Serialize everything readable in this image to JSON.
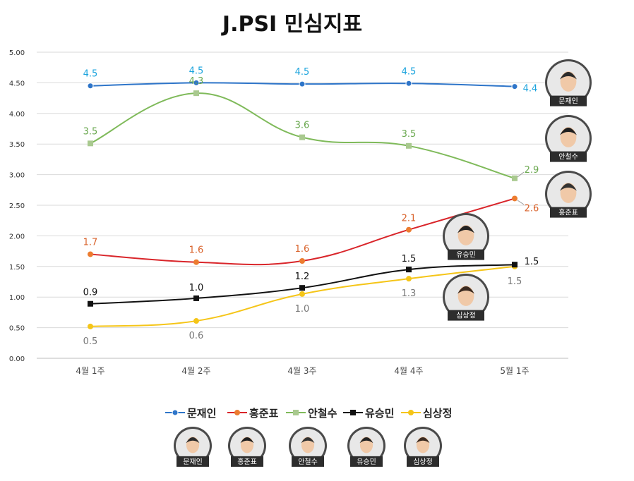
{
  "chart_data": {
    "type": "line",
    "title": "J.PSI 민심지표",
    "categories": [
      "4월 1주",
      "4월 2주",
      "4월 3주",
      "4월 4주",
      "5월 1주"
    ],
    "ylim": [
      0,
      5
    ],
    "yticks": [
      "0.00",
      "0.50",
      "1.00",
      "1.50",
      "2.00",
      "2.50",
      "3.00",
      "3.50",
      "4.00",
      "4.50",
      "5.00"
    ],
    "grid": true,
    "legend_position": "bottom",
    "series": [
      {
        "name": "문재인",
        "color": "#2e75c9",
        "label_color": "#1aa3dd",
        "marker": "circle",
        "values": [
          4.45,
          4.5,
          4.48,
          4.49,
          4.44
        ],
        "labels": [
          "4.5",
          "4.5",
          "4.5",
          "4.5",
          "4.4"
        ]
      },
      {
        "name": "홍준표",
        "color": "#d9252a",
        "label_color": "#d9622b",
        "marker": "circle-orange",
        "values": [
          1.7,
          1.57,
          1.59,
          2.1,
          2.61
        ],
        "labels": [
          "1.7",
          "1.6",
          "1.6",
          "2.1",
          "2.6"
        ]
      },
      {
        "name": "안철수",
        "color": "#7fba5a",
        "label_color": "#6aa84f",
        "marker": "square",
        "values": [
          3.51,
          4.33,
          3.61,
          3.47,
          2.94
        ],
        "labels": [
          "3.5",
          "4.3",
          "3.6",
          "3.5",
          "2.9"
        ]
      },
      {
        "name": "유승민",
        "color": "#111111",
        "label_color": "#111111",
        "marker": "square-black",
        "values": [
          0.89,
          0.98,
          1.15,
          1.45,
          1.53
        ],
        "labels": [
          "0.9",
          "1.0",
          "1.2",
          "1.5",
          "1.5"
        ]
      },
      {
        "name": "심상정",
        "color": "#f5c518",
        "label_color": "#777777",
        "marker": "circle-yellow",
        "values": [
          0.52,
          0.61,
          1.05,
          1.3,
          1.5
        ],
        "labels": [
          "0.5",
          "0.6",
          "1.0",
          "1.3",
          "1.5"
        ]
      }
    ],
    "portraits": [
      "문재인",
      "안철수",
      "홍준표",
      "유승민",
      "심상정"
    ],
    "legend_portraits": [
      "문재인",
      "홍준표",
      "안철수",
      "유승민",
      "심상정"
    ]
  }
}
